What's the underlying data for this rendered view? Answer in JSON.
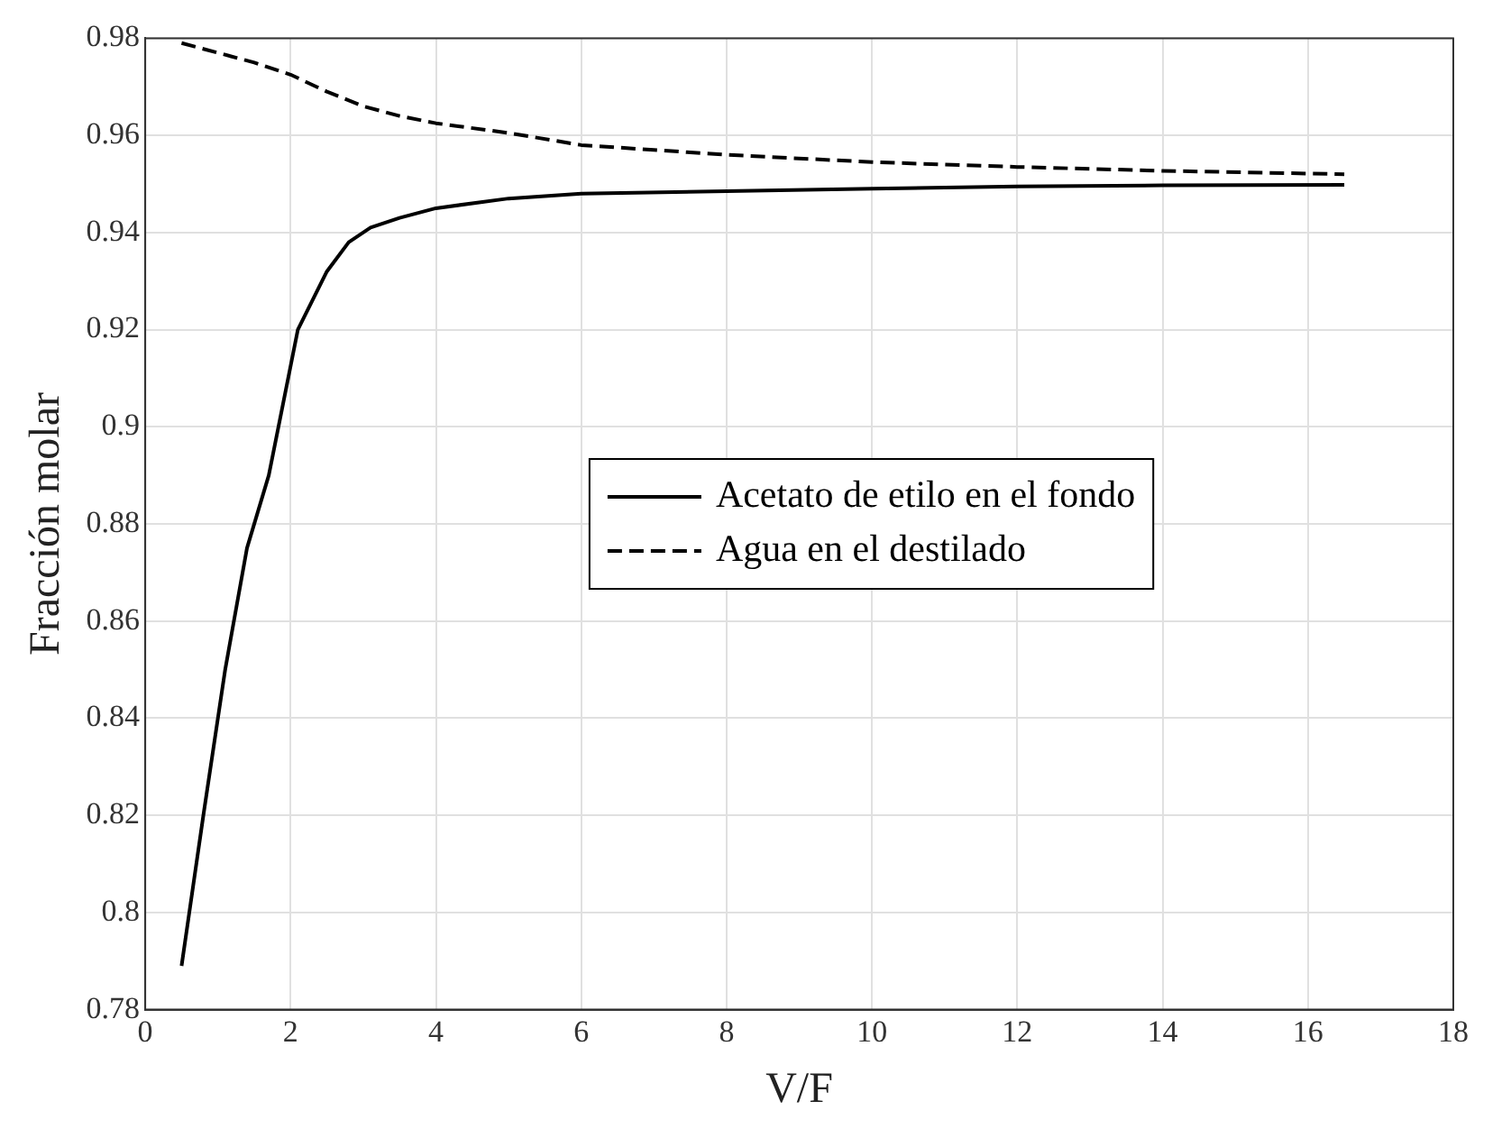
{
  "chart_data": {
    "type": "line",
    "xlabel": "V/F",
    "ylabel": "Fracción molar",
    "xlim": [
      0,
      18
    ],
    "xticks": [
      0,
      2,
      4,
      6,
      8,
      10,
      12,
      14,
      16,
      18
    ],
    "ylim": [
      0.78,
      0.98
    ],
    "yticks": [
      0.78,
      0.8,
      0.82,
      0.84,
      0.86,
      0.88,
      0.9,
      0.92,
      0.94,
      0.96,
      0.98
    ],
    "grid": true,
    "legend": "center",
    "series": [
      {
        "name": "Acetato de etilo en el fondo",
        "color": "#000000",
        "line_style": "solid",
        "x": [
          0.5,
          0.8,
          1.1,
          1.4,
          1.7,
          2.1,
          2.5,
          2.8,
          3.1,
          3.5,
          4,
          5,
          6,
          8,
          10,
          12,
          14,
          16.5
        ],
        "values": [
          0.789,
          0.82,
          0.85,
          0.875,
          0.89,
          0.92,
          0.932,
          0.938,
          0.941,
          0.943,
          0.945,
          0.947,
          0.948,
          0.9485,
          0.949,
          0.9495,
          0.9497,
          0.9498
        ]
      },
      {
        "name": "Agua en el destilado",
        "color": "#000000",
        "line_style": "dashed",
        "x": [
          0.5,
          1,
          1.5,
          2,
          2.5,
          3,
          3.5,
          4,
          5,
          6,
          7,
          8,
          10,
          12,
          14,
          16.5
        ],
        "values": [
          0.979,
          0.977,
          0.975,
          0.9725,
          0.969,
          0.966,
          0.964,
          0.9625,
          0.9605,
          0.958,
          0.957,
          0.956,
          0.9545,
          0.9535,
          0.9527,
          0.952
        ]
      }
    ]
  }
}
